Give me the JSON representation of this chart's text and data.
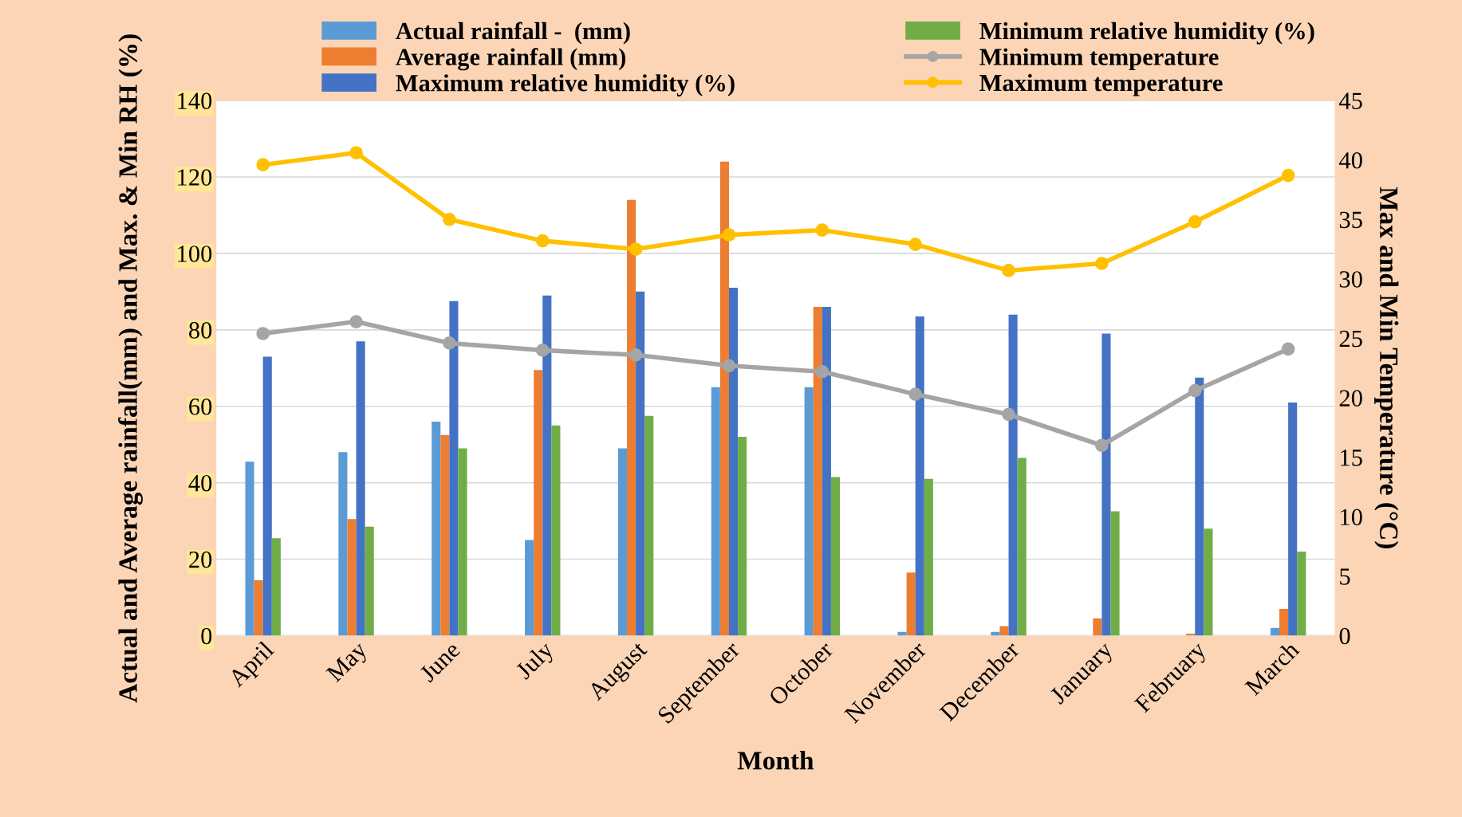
{
  "chart_data": {
    "type": "bar",
    "xlabel": "Month",
    "ylabel": "Actual and Average rainfall(mm) and Max. & Min RH (%)",
    "y2label": "Max and Min Temperature (°C)",
    "categories": [
      "April",
      "May",
      "June",
      "July",
      "August",
      "September",
      "October",
      "November",
      "December",
      "January",
      "February",
      "March"
    ],
    "series": [
      {
        "name": "Actual rainfall -  (mm)",
        "color": "#5b9bd5",
        "values": [
          45.5,
          48,
          56,
          25,
          49,
          65,
          65,
          1,
          1,
          0,
          0,
          2
        ]
      },
      {
        "name": "Average rainfall (mm)",
        "color": "#ed7d31",
        "values": [
          14.5,
          30.5,
          52.5,
          69.5,
          114,
          124,
          86,
          16.5,
          2.5,
          4.5,
          0.5,
          7
        ]
      },
      {
        "name": "Maximum relative humidity (%)",
        "color": "#4472c4",
        "values": [
          73,
          77,
          87.5,
          89,
          90,
          91,
          86,
          83.5,
          84,
          79,
          67.5,
          61
        ]
      },
      {
        "name": "Minimum relative humidity (%)",
        "color": "#70ad47",
        "values": [
          25.5,
          28.5,
          49,
          55,
          57.5,
          52,
          41.5,
          41,
          46.5,
          32.5,
          28,
          22
        ]
      },
      {
        "name": "Minimum temperature",
        "type": "line",
        "axis": "y2",
        "marker": "circle",
        "color": "#a5a5a5",
        "values": [
          25.4,
          26.4,
          24.6,
          24,
          23.6,
          22.7,
          22.2,
          20.3,
          18.6,
          16,
          20.6,
          24.1
        ]
      },
      {
        "name": "Maximum temperature",
        "type": "line",
        "axis": "y2",
        "marker": "circle",
        "color": "#ffc000",
        "values": [
          39.6,
          40.6,
          35,
          33.2,
          32.5,
          33.7,
          34.1,
          32.9,
          30.7,
          31.3,
          34.8,
          38.7
        ]
      }
    ],
    "ylim": [
      0,
      140
    ],
    "yticks": [
      0,
      20,
      40,
      60,
      80,
      100,
      120,
      140
    ],
    "y2lim": [
      0,
      45
    ],
    "y2ticks": [
      0,
      5,
      10,
      15,
      20,
      25,
      30,
      35,
      40,
      45
    ],
    "grid": "y",
    "legend": "top"
  }
}
